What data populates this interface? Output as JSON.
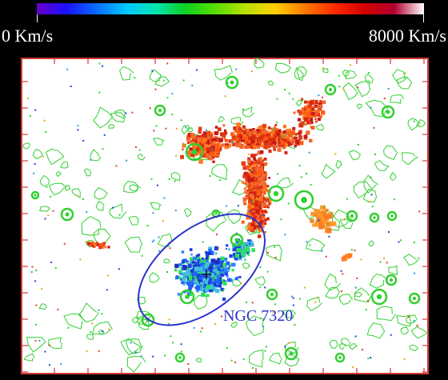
{
  "colorbar": {
    "min_label": "0 Km/s",
    "max_label": "8000 Km/s",
    "min_value": 0,
    "max_value": 8000,
    "unit": "Km/s",
    "stops": [
      "#6a00c8",
      "#1a10ff",
      "#0a6cff",
      "#00c8ff",
      "#00e6b0",
      "#10d020",
      "#58e000",
      "#b8e000",
      "#ffd000",
      "#ff7a00",
      "#ff2a00",
      "#d40000",
      "#b00030",
      "#ffffff"
    ]
  },
  "annotation": {
    "label": "NGC 7320",
    "color": "#2b33c8"
  },
  "colors": {
    "background": "#000000",
    "panel": "#ffffff",
    "frame": "#d33a3a",
    "contours": "#31d031",
    "high_velocity": "#e0401a",
    "low_velocity": "#1a44e0"
  }
}
